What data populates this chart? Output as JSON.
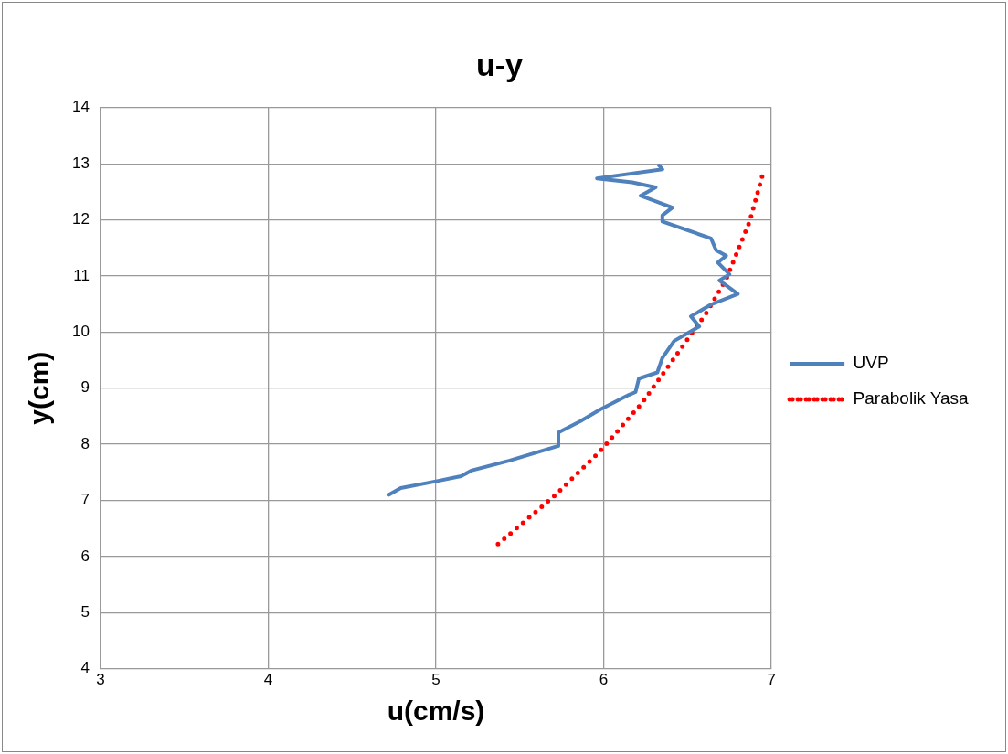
{
  "chart_data": {
    "type": "line",
    "title": "u-y",
    "xlabel": "u(cm/s)",
    "ylabel": "y(cm)",
    "xlim": [
      3,
      7
    ],
    "xticks": [
      3,
      4,
      5,
      6,
      7
    ],
    "ylim": [
      4,
      14
    ],
    "yticks": [
      4,
      5,
      6,
      7,
      8,
      9,
      10,
      11,
      12,
      13,
      14
    ],
    "grid": true,
    "legend": "right",
    "marker": "none",
    "series": [
      {
        "name": "UVP",
        "color": "#4f81bd",
        "line_style": "solid",
        "x": [
          6.33,
          6.35,
          5.96,
          6.17,
          6.31,
          6.22,
          6.41,
          6.35,
          6.35,
          6.64,
          6.67,
          6.73,
          6.68,
          6.75,
          6.69,
          6.8,
          6.64,
          6.52,
          6.57,
          6.42,
          6.35,
          6.32,
          6.21,
          6.19,
          6.15,
          5.98,
          5.86,
          5.73,
          5.73,
          5.44,
          5.21,
          5.15,
          5.0,
          4.79,
          4.72
        ],
        "values": [
          12.97,
          12.9,
          12.74,
          12.67,
          12.58,
          12.43,
          12.22,
          12.08,
          11.97,
          11.67,
          11.46,
          11.36,
          11.24,
          11.03,
          10.92,
          10.68,
          10.49,
          10.28,
          10.1,
          9.84,
          9.54,
          9.28,
          9.17,
          8.93,
          8.88,
          8.62,
          8.41,
          8.21,
          7.97,
          7.71,
          7.53,
          7.43,
          7.34,
          7.22,
          7.1
        ]
      },
      {
        "name": "Parabolik Yasa",
        "color": "#ff0000",
        "line_style": "dotted",
        "x": [
          5.37,
          5.71,
          5.98,
          6.23,
          6.61,
          6.73,
          6.87,
          6.95
        ],
        "values": [
          6.22,
          7.09,
          7.88,
          8.74,
          10.33,
          10.94,
          11.97,
          12.83
        ]
      }
    ]
  }
}
